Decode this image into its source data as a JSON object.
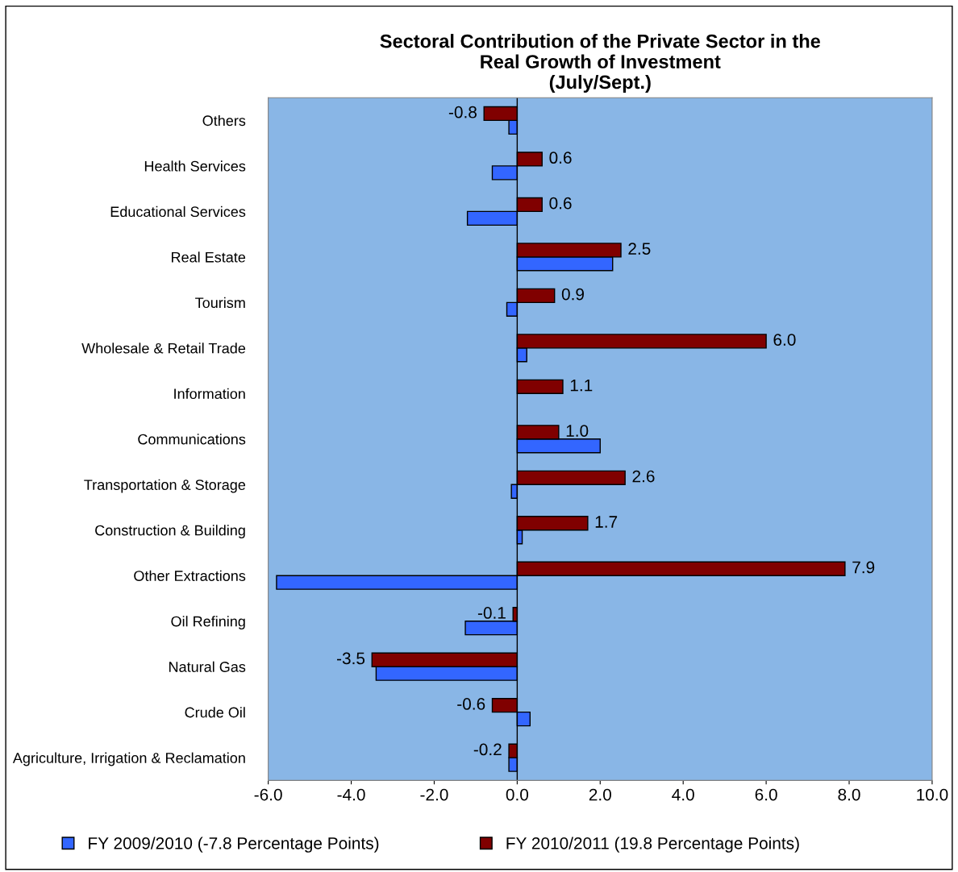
{
  "chart_data": {
    "type": "bar",
    "orientation": "horizontal",
    "title": "Sectoral Contribution of the Private Sector in the\nReal Growth of Investment\n(July/Sept.)",
    "categories": [
      "Others",
      "Health Services",
      "Educational Services",
      "Real Estate",
      "Tourism",
      "Wholesale & Retail Trade",
      "Information",
      "Communications",
      "Transportation & Storage",
      "Construction & Building",
      "Other Extractions",
      "Oil Refining",
      "Natural Gas",
      "Crude Oil",
      "Agriculture, Irrigation & Reclamation"
    ],
    "series": [
      {
        "name": "FY 2009/2010 (-7.8 Percentage Points)",
        "color": "#3366ff",
        "values": [
          -0.2,
          -0.6,
          -1.2,
          2.3,
          -0.25,
          0.23,
          null,
          2.0,
          -0.14,
          0.12,
          -5.8,
          -1.25,
          -3.4,
          0.31,
          -0.2
        ]
      },
      {
        "name": "FY 2010/2011 (19.8 Percentage Points)",
        "color": "#800000",
        "values": [
          -0.8,
          0.6,
          0.6,
          2.5,
          0.9,
          6.0,
          1.1,
          1.0,
          2.6,
          1.7,
          7.9,
          -0.1,
          -3.5,
          -0.6,
          -0.2
        ],
        "value_labels": [
          "-0.8",
          "0.6",
          "0.6",
          "2.5",
          "0.9",
          "6.0",
          "1.1",
          "1.0",
          "2.6",
          "1.7",
          "7.9",
          "-0.1",
          "-3.5",
          "-0.6",
          "-0.2"
        ]
      }
    ],
    "xlim": [
      -6,
      10
    ],
    "xticks": [
      {
        "value": -6,
        "label": "-6.0"
      },
      {
        "value": -4,
        "label": "-4.0"
      },
      {
        "value": -2,
        "label": "-2.0"
      },
      {
        "value": 0,
        "label": "0.0"
      },
      {
        "value": 2,
        "label": "2.0"
      },
      {
        "value": 4,
        "label": "4.0"
      },
      {
        "value": 6,
        "label": "6.0"
      },
      {
        "value": 8,
        "label": "8.0"
      },
      {
        "value": 10,
        "label": "10.0"
      }
    ],
    "grid": false,
    "ref_lines": [
      {
        "axis": "x",
        "value": 0,
        "color": "#000000"
      }
    ],
    "legend": "bottom"
  }
}
